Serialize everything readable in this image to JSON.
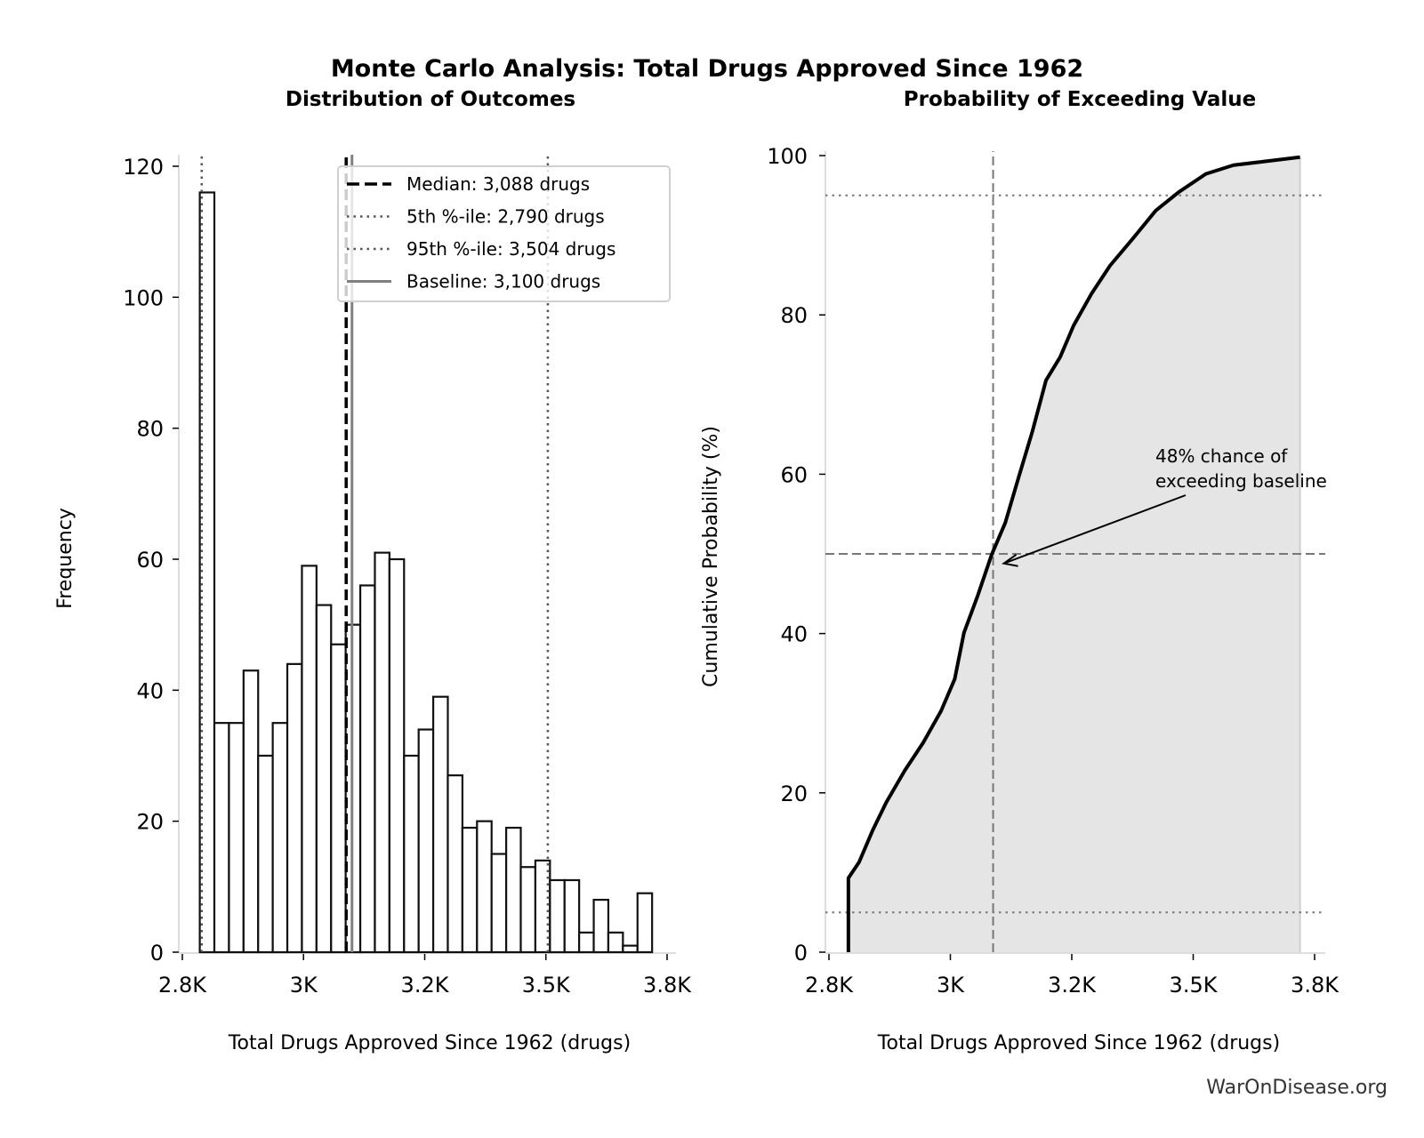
{
  "title": "Monte Carlo Analysis: Total Drugs Approved Since 1962",
  "watermark": "WarOnDisease.org",
  "chart_data": [
    {
      "type": "bar",
      "title": "Distribution of Outcomes",
      "xlabel": "Total Drugs Approved Since 1962 (drugs)",
      "ylabel": "Frequency",
      "xlim": [
        2740,
        3770
      ],
      "ylim": [
        0,
        122
      ],
      "xticks": [
        2750,
        3000,
        3250,
        3500,
        3750
      ],
      "xtick_labels": [
        "2.8K",
        "3K",
        "3.2K",
        "3.5K",
        "3.8K"
      ],
      "yticks": [
        0,
        20,
        40,
        60,
        80,
        100,
        120
      ],
      "ytick_labels": [
        "0",
        "20",
        "40",
        "60",
        "80",
        "100",
        "120"
      ],
      "bin_start": 2786,
      "bin_width": 30.1,
      "values": [
        116,
        35,
        35,
        43,
        30,
        35,
        44,
        59,
        53,
        47,
        50,
        56,
        61,
        60,
        30,
        34,
        39,
        27,
        19,
        20,
        15,
        19,
        13,
        14,
        11,
        11,
        3,
        8,
        3,
        1,
        9
      ],
      "reference_lines": [
        {
          "label": "Median: 3,088 drugs",
          "value": 3088,
          "style": "dashed",
          "color": "#000000"
        },
        {
          "label": "5th %-ile: 2,790 drugs",
          "value": 2790,
          "style": "dotted",
          "color": "#555555"
        },
        {
          "label": "95th %-ile: 3,504 drugs",
          "value": 3504,
          "style": "dotted",
          "color": "#555555"
        },
        {
          "label": "Baseline: 3,100 drugs",
          "value": 3100,
          "style": "solid",
          "color": "#808080"
        }
      ],
      "legend_position": "top-right",
      "grid": false
    },
    {
      "type": "area",
      "title": "Probability of Exceeding Value",
      "xlabel": "Total Drugs Approved Since 1962 (drugs)",
      "ylabel": "Cumulative Probability (%)",
      "xlim": [
        2740,
        3770
      ],
      "ylim": [
        0,
        100
      ],
      "xticks": [
        2750,
        3000,
        3250,
        3500,
        3750
      ],
      "xtick_labels": [
        "2.8K",
        "3K",
        "3.2K",
        "3.5K",
        "3.8K"
      ],
      "yticks": [
        0,
        20,
        40,
        60,
        80,
        100
      ],
      "ytick_labels": [
        "0",
        "20",
        "40",
        "60",
        "80",
        "100"
      ],
      "x": [
        2790,
        2790,
        2812,
        2840,
        2868,
        2906,
        2944,
        2981,
        3009,
        3028,
        3056,
        3085,
        3113,
        3141,
        3169,
        3197,
        3226,
        3254,
        3291,
        3329,
        3376,
        3423,
        3470,
        3526,
        3583,
        3639,
        3720
      ],
      "y": [
        0,
        9.3,
        11.3,
        15.3,
        18.8,
        22.8,
        26.3,
        30.3,
        34.3,
        40.1,
        44.7,
        49.9,
        53.9,
        59.7,
        65.4,
        71.8,
        74.7,
        78.7,
        82.7,
        86.2,
        89.6,
        93.1,
        95.4,
        97.7,
        98.8,
        99.2,
        99.8
      ],
      "fill_color": "#e5e5e5",
      "reference_lines": {
        "median_x": 3088,
        "hline_50": 50,
        "hline_5": 5,
        "hline_95": 95
      },
      "annotation": [
        "48% chance of",
        "exceeding baseline"
      ],
      "grid": false
    }
  ]
}
